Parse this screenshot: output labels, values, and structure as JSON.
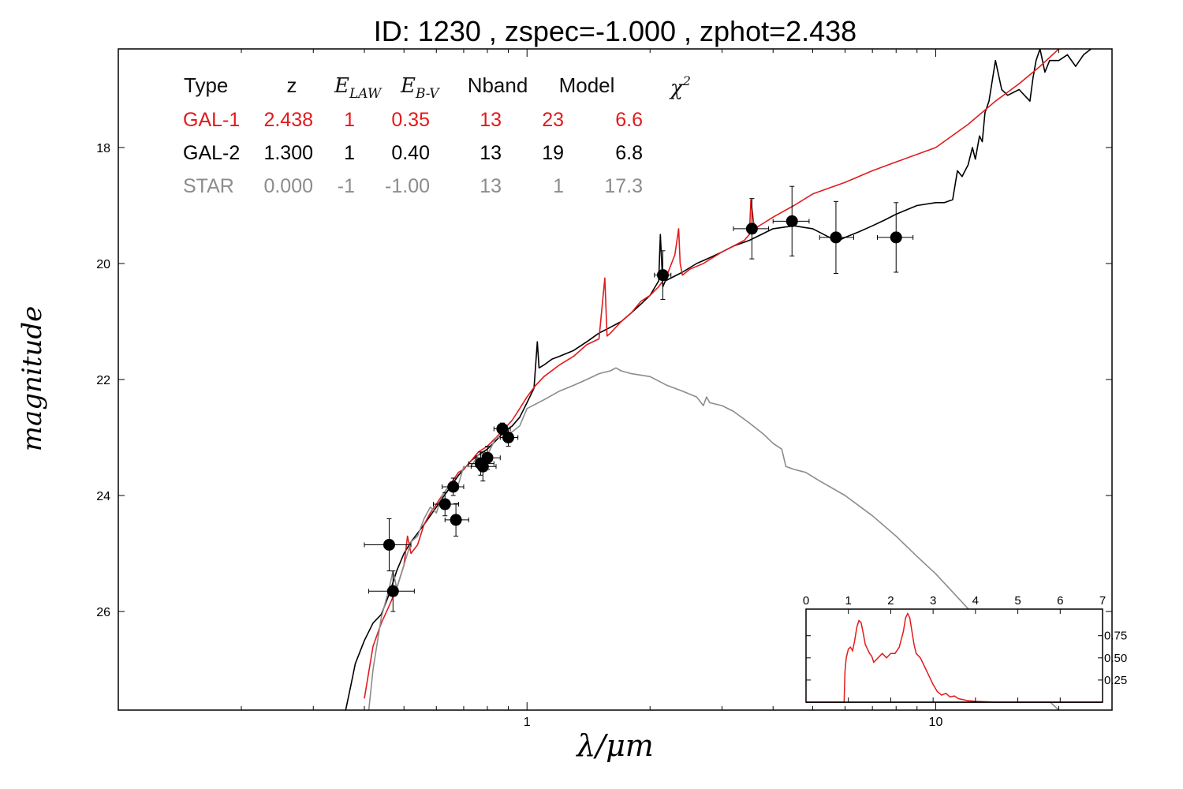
{
  "chart_data": {
    "type": "line",
    "title": "ID:  1230  , zspec=-1.000 , zphot=2.438",
    "xlabel": "λ/μm",
    "ylabel": "magnitude",
    "xscale": "log",
    "xlim": [
      0.1,
      27
    ],
    "ylim": [
      27.7,
      16.3
    ],
    "x_ticks": [
      {
        "v": 1,
        "label": "1"
      },
      {
        "v": 10,
        "label": "10"
      }
    ],
    "x_minor_ticks": [
      0.2,
      0.3,
      0.4,
      0.5,
      0.6,
      0.7,
      0.8,
      0.9,
      2,
      3,
      4,
      5,
      6,
      7,
      8,
      9,
      20
    ],
    "y_ticks": [
      18,
      20,
      22,
      24,
      26
    ],
    "grid": false,
    "colors": {
      "gal1": "#e31a1c",
      "gal2": "#000000",
      "star": "#8c8c8c"
    },
    "fit_table": {
      "headers": [
        "Type",
        "z",
        "E_LAW",
        "E_B-V",
        "Nband",
        "Model",
        "χ2"
      ],
      "rows": [
        {
          "key": "gal1",
          "type": "GAL-1",
          "z": "2.438",
          "elaw": "1",
          "ebv": "0.35",
          "nband": "13",
          "model": "23",
          "chi2": "6.6"
        },
        {
          "key": "gal2",
          "type": "GAL-2",
          "z": "1.300",
          "elaw": "1",
          "ebv": "0.40",
          "nband": "13",
          "model": "19",
          "chi2": "6.8"
        },
        {
          "key": "star",
          "type": "STAR",
          "z": "0.000",
          "elaw": "-1",
          "ebv": "-1.00",
          "nband": "13",
          "model": "1",
          "chi2": "17.3"
        }
      ]
    },
    "photometry": [
      {
        "x": 0.46,
        "y": 24.85,
        "xerr": [
          0.4,
          0.52
        ],
        "yerr": 0.45
      },
      {
        "x": 0.47,
        "y": 25.65,
        "xerr": [
          0.41,
          0.53
        ],
        "yerr": 0.35
      },
      {
        "x": 0.63,
        "y": 24.15,
        "xerr": [
          0.59,
          0.68
        ],
        "yerr": 0.2
      },
      {
        "x": 0.66,
        "y": 23.85,
        "xerr": [
          0.62,
          0.7
        ],
        "yerr": 0.15
      },
      {
        "x": 0.67,
        "y": 24.42,
        "xerr": [
          0.63,
          0.72
        ],
        "yerr": 0.28
      },
      {
        "x": 0.77,
        "y": 23.45,
        "xerr": [
          0.72,
          0.83
        ],
        "yerr": 0.2
      },
      {
        "x": 0.78,
        "y": 23.5,
        "xerr": [
          0.73,
          0.84
        ],
        "yerr": 0.25
      },
      {
        "x": 0.8,
        "y": 23.35,
        "xerr": [
          0.75,
          0.86
        ],
        "yerr": 0.2
      },
      {
        "x": 0.87,
        "y": 22.85,
        "xerr": [
          0.83,
          0.91
        ],
        "yerr": 0.1
      },
      {
        "x": 0.9,
        "y": 23.0,
        "xerr": [
          0.86,
          0.95
        ],
        "yerr": 0.15
      },
      {
        "x": 2.15,
        "y": 20.2,
        "xerr": [
          2.05,
          2.25
        ],
        "yerr": 0.42
      },
      {
        "x": 3.55,
        "y": 19.4,
        "xerr": [
          3.2,
          3.9
        ],
        "yerr": 0.52
      },
      {
        "x": 4.45,
        "y": 19.27,
        "xerr": [
          4.0,
          4.9
        ],
        "yerr": 0.6
      },
      {
        "x": 5.7,
        "y": 19.55,
        "xerr": [
          5.2,
          6.3
        ],
        "yerr": 0.62
      },
      {
        "x": 8.0,
        "y": 19.55,
        "xerr": [
          7.2,
          8.8
        ],
        "yerr": 0.6
      }
    ],
    "series": [
      {
        "key": "gal2",
        "color": "#000000",
        "x": [
          0.36,
          0.37,
          0.38,
          0.4,
          0.42,
          0.44,
          0.46,
          0.48,
          0.5,
          0.52,
          0.54,
          0.56,
          0.58,
          0.6,
          0.62,
          0.65,
          0.68,
          0.7,
          0.73,
          0.76,
          0.8,
          0.84,
          0.88,
          0.92,
          0.96,
          1.0,
          1.04,
          1.06,
          1.07,
          1.1,
          1.15,
          1.2,
          1.3,
          1.4,
          1.5,
          1.6,
          1.7,
          1.8,
          1.9,
          2.0,
          2.1,
          2.12,
          2.15,
          2.18,
          2.25,
          2.4,
          2.6,
          2.8,
          3.0,
          3.2,
          3.5,
          4.0,
          4.5,
          5.0,
          5.5,
          5.8,
          6.0,
          6.5,
          7.0,
          7.5,
          8.0,
          9.0,
          10.0,
          10.5,
          11.0,
          11.3,
          11.6,
          12.0,
          12.3,
          12.5,
          12.8,
          13.0,
          13.2,
          13.5,
          14.0,
          14.5,
          15.0,
          16.0,
          17.0,
          17.3,
          17.6,
          18.0,
          18.5,
          19.0,
          20.0,
          21.0,
          22.0,
          23.0,
          24.0,
          25.0
        ],
        "y": [
          27.7,
          27.3,
          26.9,
          26.5,
          26.2,
          26.05,
          25.7,
          25.3,
          25.0,
          24.8,
          24.65,
          24.5,
          24.35,
          24.2,
          24.05,
          23.85,
          23.65,
          23.55,
          23.4,
          23.3,
          23.2,
          23.05,
          22.9,
          22.8,
          22.65,
          22.4,
          22.15,
          21.35,
          21.8,
          21.75,
          21.65,
          21.6,
          21.5,
          21.35,
          21.2,
          21.1,
          21.0,
          20.85,
          20.7,
          20.55,
          20.3,
          19.5,
          20.4,
          20.3,
          20.25,
          20.15,
          20.0,
          19.9,
          19.8,
          19.7,
          19.6,
          19.4,
          19.35,
          19.4,
          19.55,
          19.6,
          19.55,
          19.45,
          19.35,
          19.25,
          19.15,
          19.0,
          18.95,
          18.95,
          18.9,
          18.4,
          18.5,
          18.3,
          18.0,
          18.2,
          17.8,
          17.9,
          17.4,
          17.2,
          16.5,
          17.0,
          17.1,
          17.0,
          17.2,
          16.8,
          16.5,
          16.3,
          16.7,
          16.5,
          16.5,
          16.4,
          16.6,
          16.4,
          16.3,
          16.2
        ]
      },
      {
        "key": "gal1",
        "color": "#e31a1c",
        "x": [
          0.4,
          0.42,
          0.44,
          0.46,
          0.48,
          0.5,
          0.51,
          0.52,
          0.54,
          0.56,
          0.58,
          0.6,
          0.62,
          0.65,
          0.68,
          0.7,
          0.73,
          0.76,
          0.8,
          0.84,
          0.88,
          0.92,
          0.96,
          1.0,
          1.05,
          1.1,
          1.2,
          1.3,
          1.4,
          1.5,
          1.55,
          1.57,
          1.6,
          1.7,
          1.8,
          1.9,
          2.0,
          2.1,
          2.2,
          2.3,
          2.35,
          2.37,
          2.4,
          2.5,
          2.7,
          3.0,
          3.2,
          3.4,
          3.5,
          3.53,
          3.6,
          3.8,
          4.0,
          4.5,
          5.0,
          6.0,
          7.0,
          8.0,
          10.0,
          12.0,
          14.0,
          16.0,
          18.0,
          20.0,
          21.0,
          22.0,
          22.5,
          23.0,
          24.0
        ],
        "y": [
          27.5,
          26.6,
          26.2,
          25.9,
          25.6,
          25.2,
          24.7,
          25.0,
          24.85,
          24.5,
          24.3,
          24.15,
          24.0,
          23.8,
          23.6,
          23.55,
          23.4,
          23.25,
          23.15,
          23.0,
          22.85,
          22.7,
          22.5,
          22.3,
          22.1,
          21.95,
          21.75,
          21.6,
          21.4,
          21.3,
          20.25,
          21.25,
          21.2,
          21.0,
          20.85,
          20.65,
          20.55,
          20.4,
          20.2,
          19.85,
          19.4,
          20.0,
          20.2,
          20.1,
          20.0,
          19.8,
          19.7,
          19.6,
          19.5,
          18.9,
          19.4,
          19.3,
          19.2,
          19.0,
          18.8,
          18.6,
          18.4,
          18.25,
          18.0,
          17.6,
          17.2,
          16.9,
          16.6,
          16.3,
          15.9,
          16.3,
          15.9,
          16.2,
          16.2
        ]
      },
      {
        "key": "star",
        "color": "#8c8c8c",
        "x": [
          0.41,
          0.42,
          0.44,
          0.46,
          0.47,
          0.48,
          0.5,
          0.52,
          0.54,
          0.56,
          0.58,
          0.6,
          0.62,
          0.65,
          0.68,
          0.7,
          0.73,
          0.76,
          0.8,
          0.84,
          0.88,
          0.92,
          0.96,
          1.0,
          1.1,
          1.2,
          1.3,
          1.4,
          1.5,
          1.6,
          1.65,
          1.7,
          1.8,
          2.0,
          2.2,
          2.4,
          2.6,
          2.7,
          2.75,
          2.8,
          3.0,
          3.2,
          3.5,
          3.8,
          4.0,
          4.2,
          4.3,
          4.5,
          4.8,
          5.2,
          6.0,
          7.0,
          8.0,
          9.0,
          10.0,
          12.0,
          14.0,
          16.0,
          18.0,
          20.0,
          22.0,
          24.0,
          25.0,
          27.0
        ],
        "y": [
          27.7,
          27.0,
          26.1,
          25.6,
          25.3,
          25.6,
          25.2,
          24.8,
          24.7,
          24.4,
          24.2,
          24.3,
          24.0,
          23.8,
          23.8,
          23.5,
          23.5,
          23.3,
          23.3,
          23.0,
          23.0,
          22.9,
          22.8,
          22.5,
          22.35,
          22.2,
          22.1,
          22.0,
          21.9,
          21.85,
          21.8,
          21.85,
          21.9,
          21.95,
          22.1,
          22.2,
          22.3,
          22.45,
          22.3,
          22.4,
          22.45,
          22.55,
          22.75,
          22.95,
          23.1,
          23.2,
          23.5,
          23.55,
          23.6,
          23.75,
          24.0,
          24.35,
          24.7,
          25.05,
          25.35,
          25.95,
          26.5,
          27.0,
          27.4,
          27.7,
          28.0,
          28.2,
          28.3,
          28.5
        ]
      }
    ],
    "inset": {
      "type": "line",
      "xlim": [
        0,
        7
      ],
      "ylim": [
        0,
        1.05
      ],
      "x_ticks": [
        0,
        1,
        2,
        3,
        4,
        5,
        6,
        7
      ],
      "y_ticks": [
        0.25,
        0.5,
        0.75
      ],
      "y_tick_labels": [
        "0.25",
        "0.50",
        "0.75"
      ],
      "series": [
        {
          "key": "pdz",
          "color": "#e31a1c",
          "x": [
            0,
            0.9,
            0.92,
            0.95,
            1.0,
            1.05,
            1.1,
            1.15,
            1.2,
            1.25,
            1.3,
            1.35,
            1.4,
            1.45,
            1.5,
            1.55,
            1.6,
            1.7,
            1.8,
            1.9,
            2.0,
            2.1,
            2.2,
            2.3,
            2.35,
            2.4,
            2.45,
            2.5,
            2.55,
            2.6,
            2.7,
            2.8,
            2.9,
            3.0,
            3.1,
            3.2,
            3.3,
            3.4,
            3.5,
            3.6,
            3.8,
            4.0,
            4.5,
            5.0,
            7.0
          ],
          "y": [
            0,
            0,
            0.35,
            0.5,
            0.6,
            0.62,
            0.58,
            0.7,
            0.85,
            0.92,
            0.9,
            0.78,
            0.65,
            0.6,
            0.55,
            0.52,
            0.45,
            0.5,
            0.55,
            0.5,
            0.55,
            0.55,
            0.62,
            0.8,
            0.95,
            1.0,
            0.95,
            0.8,
            0.65,
            0.55,
            0.5,
            0.4,
            0.3,
            0.2,
            0.12,
            0.08,
            0.1,
            0.06,
            0.07,
            0.04,
            0.02,
            0.01,
            0.0,
            0.0,
            0.0
          ]
        },
        {
          "key": "baseline",
          "color": "#000000",
          "x": [
            0,
            7
          ],
          "y": [
            0,
            0
          ]
        }
      ]
    }
  }
}
